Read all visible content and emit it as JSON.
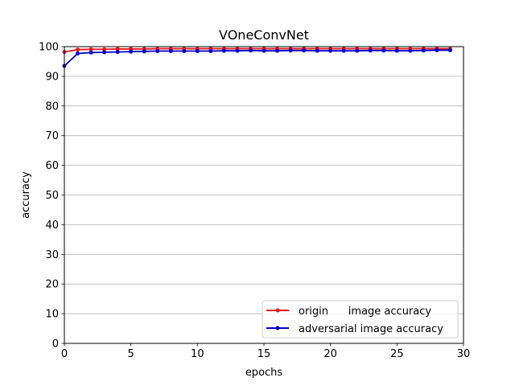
{
  "chart_data": {
    "type": "line",
    "title": "VOneConvNet",
    "xlabel": "epochs",
    "ylabel": "accuracy",
    "xlim": [
      0,
      30
    ],
    "ylim": [
      0,
      100
    ],
    "xticks": [
      0,
      5,
      10,
      15,
      20,
      25,
      30
    ],
    "yticks": [
      0,
      10,
      20,
      30,
      40,
      50,
      60,
      70,
      80,
      90,
      100
    ],
    "grid": "horizontal",
    "legend_position": "lower-right",
    "x": [
      0,
      1,
      2,
      3,
      4,
      5,
      6,
      7,
      8,
      9,
      10,
      11,
      12,
      13,
      14,
      15,
      16,
      17,
      18,
      19,
      20,
      21,
      22,
      23,
      24,
      25,
      26,
      27,
      28,
      29
    ],
    "series": [
      {
        "name": "origin      image accuracy",
        "color": "#e31a1c",
        "marker": "dot",
        "values": [
          98.2,
          99.0,
          99.1,
          99.1,
          99.2,
          99.2,
          99.2,
          99.3,
          99.3,
          99.3,
          99.3,
          99.3,
          99.3,
          99.3,
          99.3,
          99.3,
          99.3,
          99.3,
          99.3,
          99.3,
          99.3,
          99.3,
          99.3,
          99.3,
          99.3,
          99.3,
          99.3,
          99.3,
          99.3,
          99.3
        ]
      },
      {
        "name": "adversarial image accuracy",
        "color": "#0000cc",
        "marker": "dot",
        "values": [
          93.5,
          97.7,
          98.0,
          98.1,
          98.2,
          98.3,
          98.4,
          98.5,
          98.5,
          98.5,
          98.5,
          98.5,
          98.6,
          98.6,
          98.7,
          98.6,
          98.6,
          98.7,
          98.7,
          98.6,
          98.6,
          98.6,
          98.6,
          98.7,
          98.7,
          98.6,
          98.6,
          98.7,
          98.8,
          98.8
        ]
      }
    ]
  }
}
